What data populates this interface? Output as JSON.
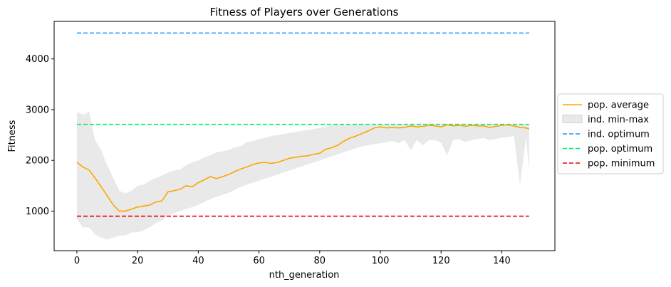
{
  "chart_data": {
    "type": "line",
    "title": "Fitness of Players over Generations",
    "xlabel": "nth_generation",
    "ylabel": "Fitness",
    "xlim": [
      -7.5,
      157.5
    ],
    "ylim": [
      220,
      4740
    ],
    "xticks": [
      0,
      20,
      40,
      60,
      80,
      100,
      120,
      140
    ],
    "yticks": [
      1000,
      2000,
      3000,
      4000
    ],
    "grid": false,
    "legend_position": "right-outside",
    "colors": {
      "average": "#ffa500",
      "band": "#d3d3d3",
      "ind_optimum": "#1e90ff",
      "pop_optimum": "#00ee76",
      "pop_minimum": "#ee0000"
    },
    "legend": [
      {
        "key": "average",
        "label": "pop. average",
        "style": "line"
      },
      {
        "key": "band",
        "label": "ind. min-max",
        "style": "patch"
      },
      {
        "key": "ind_optimum",
        "label": "ind. optimum",
        "style": "dashed"
      },
      {
        "key": "pop_optimum",
        "label": "pop. optimum",
        "style": "dashed"
      },
      {
        "key": "pop_minimum",
        "label": "pop. minimum",
        "style": "dashed"
      }
    ],
    "hlines": [
      {
        "key": "ind_optimum",
        "y": 4510,
        "xrange": [
          0,
          149
        ]
      },
      {
        "key": "pop_optimum",
        "y": 2710,
        "xrange": [
          0,
          149
        ]
      },
      {
        "key": "pop_minimum",
        "y": 900,
        "xrange": [
          0,
          149
        ]
      }
    ],
    "series": [
      {
        "key": "average",
        "name": "pop. average",
        "x": [
          0,
          2,
          4,
          6,
          8,
          10,
          12,
          14,
          16,
          18,
          20,
          22,
          24,
          26,
          28,
          30,
          32,
          34,
          36,
          38,
          40,
          42,
          44,
          46,
          48,
          50,
          52,
          54,
          56,
          58,
          60,
          62,
          64,
          66,
          68,
          70,
          72,
          74,
          76,
          78,
          80,
          82,
          84,
          86,
          88,
          90,
          92,
          94,
          96,
          98,
          100,
          102,
          104,
          106,
          108,
          110,
          112,
          114,
          116,
          118,
          120,
          122,
          124,
          126,
          128,
          130,
          132,
          134,
          136,
          138,
          140,
          142,
          144,
          146,
          148,
          149
        ],
        "y": [
          1960,
          1870,
          1810,
          1650,
          1480,
          1300,
          1120,
          1000,
          1000,
          1040,
          1080,
          1100,
          1120,
          1180,
          1200,
          1380,
          1400,
          1430,
          1500,
          1480,
          1560,
          1620,
          1680,
          1640,
          1680,
          1720,
          1780,
          1830,
          1870,
          1920,
          1950,
          1960,
          1940,
          1960,
          2000,
          2040,
          2060,
          2080,
          2090,
          2120,
          2140,
          2220,
          2250,
          2300,
          2380,
          2440,
          2480,
          2530,
          2580,
          2640,
          2660,
          2640,
          2650,
          2640,
          2650,
          2680,
          2660,
          2670,
          2690,
          2680,
          2660,
          2700,
          2680,
          2690,
          2670,
          2690,
          2680,
          2680,
          2650,
          2670,
          2690,
          2700,
          2680,
          2650,
          2640,
          2620
        ]
      },
      {
        "key": "band",
        "name": "ind. min-max",
        "x": [
          0,
          2,
          4,
          6,
          8,
          10,
          12,
          14,
          16,
          18,
          20,
          22,
          24,
          26,
          28,
          30,
          32,
          34,
          36,
          38,
          40,
          42,
          44,
          46,
          48,
          50,
          52,
          54,
          56,
          58,
          60,
          62,
          64,
          66,
          68,
          70,
          72,
          74,
          76,
          78,
          80,
          82,
          84,
          86,
          88,
          90,
          92,
          94,
          96,
          98,
          100,
          102,
          104,
          106,
          108,
          110,
          112,
          114,
          116,
          118,
          120,
          122,
          124,
          126,
          128,
          130,
          132,
          134,
          136,
          138,
          140,
          142,
          144,
          146,
          148,
          149
        ],
        "lower": [
          840,
          680,
          680,
          540,
          480,
          440,
          480,
          520,
          520,
          580,
          580,
          620,
          680,
          760,
          820,
          920,
          960,
          1000,
          1040,
          1080,
          1120,
          1180,
          1240,
          1280,
          1320,
          1360,
          1420,
          1480,
          1520,
          1560,
          1600,
          1640,
          1680,
          1720,
          1760,
          1800,
          1840,
          1880,
          1920,
          1960,
          2000,
          2040,
          2080,
          2120,
          2160,
          2200,
          2240,
          2280,
          2300,
          2320,
          2340,
          2360,
          2380,
          2340,
          2400,
          2200,
          2400,
          2300,
          2400,
          2400,
          2350,
          2100,
          2400,
          2420,
          2360,
          2400,
          2420,
          2440,
          2400,
          2420,
          2450,
          2460,
          2480,
          1520,
          2450,
          1800
        ],
        "upper": [
          2960,
          2900,
          2960,
          2400,
          2200,
          1900,
          1650,
          1400,
          1350,
          1400,
          1500,
          1520,
          1600,
          1650,
          1700,
          1760,
          1800,
          1820,
          1900,
          1960,
          2000,
          2060,
          2100,
          2160,
          2180,
          2200,
          2260,
          2280,
          2360,
          2380,
          2420,
          2440,
          2480,
          2500,
          2520,
          2540,
          2560,
          2580,
          2600,
          2620,
          2640,
          2660,
          2700,
          2700,
          2700,
          2710,
          2710,
          2710,
          2710,
          2710,
          2710,
          2710,
          2710,
          2710,
          2710,
          2710,
          2710,
          2710,
          2710,
          2710,
          2710,
          2710,
          2710,
          2710,
          2710,
          2710,
          2710,
          2710,
          2710,
          2710,
          2710,
          2710,
          2710,
          2710,
          2710,
          2710
        ]
      }
    ]
  }
}
